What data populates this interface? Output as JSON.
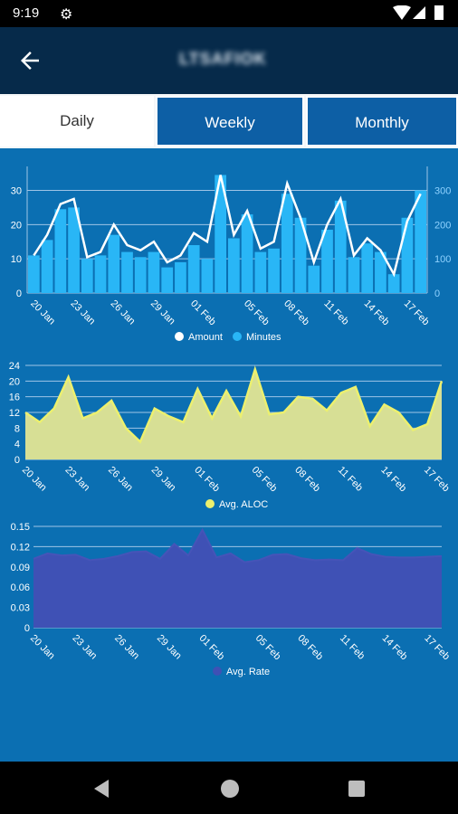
{
  "status": {
    "time": "9:19"
  },
  "appbar": {
    "title": "LTSAFIOK"
  },
  "tabs": [
    {
      "label": "Daily"
    },
    {
      "label": "Weekly"
    },
    {
      "label": "Monthly"
    }
  ],
  "x_tick_labels": [
    "20 Jan",
    "23 Jan",
    "26 Jan",
    "29 Jan",
    "01 Feb",
    "05 Feb",
    "08 Feb",
    "11 Feb",
    "14 Feb",
    "17 Feb"
  ],
  "chart_data": [
    {
      "type": "bar",
      "legend": [
        "Amount",
        "Minutes"
      ],
      "left_axis_ticks": [
        "0",
        "10",
        "20",
        "30"
      ],
      "right_axis_ticks": [
        "0",
        "100",
        "200",
        "300"
      ],
      "ylim_left": [
        0,
        37
      ],
      "ylim_right": [
        0,
        370
      ],
      "colors": {
        "amount": "#ffffff",
        "minutes": "#29b6f6"
      },
      "series": [
        {
          "name": "Minutes",
          "values": [
            110,
            155,
            245,
            250,
            100,
            110,
            170,
            120,
            105,
            120,
            75,
            90,
            140,
            100,
            345,
            160,
            230,
            120,
            130,
            290,
            220,
            80,
            185,
            270,
            105,
            145,
            120,
            55,
            220,
            300
          ]
        },
        {
          "name": "Amount",
          "values": [
            11,
            17,
            26,
            27.5,
            10.5,
            12,
            20,
            14,
            12.5,
            15,
            9,
            11,
            17.5,
            15,
            34.5,
            17,
            24,
            13,
            15,
            32,
            22,
            9,
            20,
            27.5,
            11,
            16,
            12.5,
            5.5,
            21,
            29
          ]
        }
      ]
    },
    {
      "type": "area",
      "legend": [
        "Avg. ALOC"
      ],
      "y_ticks": [
        "0",
        "4",
        "8",
        "12",
        "16",
        "20",
        "24"
      ],
      "ylim": [
        0,
        24
      ],
      "colors": {
        "fill": "#d7df95",
        "line": "#ecf06e"
      },
      "series": [
        {
          "name": "Avg. ALOC",
          "values": [
            12,
            9.5,
            13,
            21,
            10.5,
            12,
            15,
            8,
            4.5,
            13,
            11,
            9.5,
            18,
            10.5,
            17.5,
            11,
            23,
            11.5,
            12,
            16,
            15.5,
            12.5,
            17,
            18.5,
            8.5,
            14,
            12,
            7.5,
            9,
            20
          ]
        }
      ]
    },
    {
      "type": "area",
      "legend": [
        "Avg. Rate"
      ],
      "y_ticks": [
        "0",
        "0.03",
        "0.06",
        "0.09",
        "0.12",
        "0.15"
      ],
      "ylim": [
        0,
        0.15
      ],
      "colors": {
        "fill": "#3f51b5",
        "line": "#4654b8"
      },
      "series": [
        {
          "name": "Avg. Rate",
          "values": [
            0.102,
            0.11,
            0.107,
            0.108,
            0.1,
            0.102,
            0.106,
            0.112,
            0.113,
            0.102,
            0.124,
            0.107,
            0.145,
            0.104,
            0.11,
            0.097,
            0.1,
            0.108,
            0.109,
            0.103,
            0.1,
            0.101,
            0.1,
            0.118,
            0.109,
            0.105,
            0.104,
            0.104,
            0.105,
            0.106
          ]
        }
      ]
    }
  ]
}
